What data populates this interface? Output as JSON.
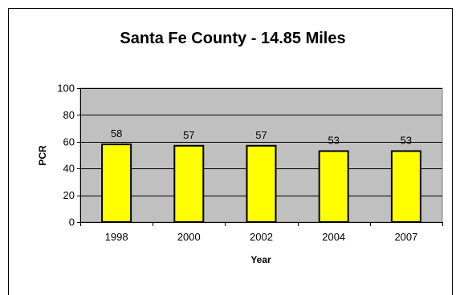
{
  "chart_data": {
    "type": "bar",
    "title": "Santa Fe County - 14.85 Miles",
    "xlabel": "Year",
    "ylabel": "PCR",
    "categories": [
      "1998",
      "2000",
      "2002",
      "2004",
      "2007"
    ],
    "values": [
      58,
      57,
      57,
      53,
      53
    ],
    "data_labels": [
      "58",
      "57",
      "57",
      "53",
      "53"
    ],
    "ylim": [
      0,
      100
    ],
    "yticks": [
      0,
      20,
      40,
      60,
      80,
      100
    ],
    "ytick_labels": [
      "0",
      "20",
      "40",
      "60",
      "80",
      "100"
    ],
    "grid": true,
    "legend": "none",
    "colors": {
      "bar_fill": "#ffff00",
      "bar_stroke": "#000000",
      "plot_background": "#c0c0c0",
      "gridline": "#000000"
    }
  }
}
